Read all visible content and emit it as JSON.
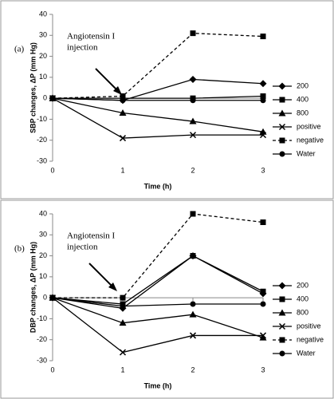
{
  "chart_data": [
    {
      "type": "line",
      "panel_label": "(a)",
      "y_label": "SBP changes, ΔP (mm Hg)",
      "x_label": "Time (h)",
      "annotation": [
        "Angiotensin I",
        "injection"
      ],
      "x": [
        0,
        1,
        2,
        3
      ],
      "xlim": [
        0,
        3
      ],
      "xticks": [
        0,
        1,
        2,
        3
      ],
      "ylim": [
        -30,
        40
      ],
      "yticks": [
        -30,
        -20,
        -10,
        0,
        10,
        20,
        30,
        40
      ],
      "series": [
        {
          "name": "200",
          "color": "#000000",
          "marker": "diamond",
          "dash": false,
          "values": [
            0,
            -1,
            9,
            7
          ]
        },
        {
          "name": "400",
          "color": "#000000",
          "marker": "square",
          "dash": false,
          "values": [
            0,
            0,
            0,
            1
          ]
        },
        {
          "name": "800",
          "color": "#000000",
          "marker": "triangle",
          "dash": false,
          "values": [
            0,
            -7,
            -11,
            -16
          ]
        },
        {
          "name": "positive",
          "color": "#000000",
          "marker": "cross",
          "dash": false,
          "values": [
            0,
            -19,
            -17.5,
            -17.5
          ]
        },
        {
          "name": "negative",
          "color": "#000000",
          "marker": "square",
          "dash": true,
          "values": [
            0,
            1,
            31,
            29.5
          ]
        },
        {
          "name": "Water",
          "color": "#000000",
          "marker": "circle",
          "dash": false,
          "values": [
            0,
            -1,
            -1,
            -1
          ]
        }
      ]
    },
    {
      "type": "line",
      "panel_label": "(b)",
      "y_label": "DBP changes, ΔP (mm Hg)",
      "x_label": "Time (h)",
      "annotation": [
        "Angiotensin I",
        "injection"
      ],
      "x": [
        0,
        1,
        2,
        3
      ],
      "xlim": [
        0,
        3
      ],
      "xticks": [
        0,
        1,
        2,
        3
      ],
      "ylim": [
        -30,
        40
      ],
      "yticks": [
        -30,
        -20,
        -10,
        0,
        10,
        20,
        30,
        40
      ],
      "series": [
        {
          "name": "200",
          "color": "#000000",
          "marker": "diamond",
          "dash": false,
          "values": [
            0,
            -5,
            20,
            2
          ]
        },
        {
          "name": "400",
          "color": "#000000",
          "marker": "square",
          "dash": false,
          "values": [
            0,
            -3,
            20,
            3
          ]
        },
        {
          "name": "800",
          "color": "#000000",
          "marker": "triangle",
          "dash": false,
          "values": [
            0,
            -12,
            -8,
            -19
          ]
        },
        {
          "name": "positive",
          "color": "#000000",
          "marker": "cross",
          "dash": false,
          "values": [
            0,
            -26,
            -18,
            -18
          ]
        },
        {
          "name": "negative",
          "color": "#000000",
          "marker": "square",
          "dash": true,
          "values": [
            0,
            0,
            40,
            36
          ]
        },
        {
          "name": "Water",
          "color": "#000000",
          "marker": "circle",
          "dash": false,
          "values": [
            0,
            -4,
            -3,
            -3
          ]
        }
      ]
    }
  ]
}
